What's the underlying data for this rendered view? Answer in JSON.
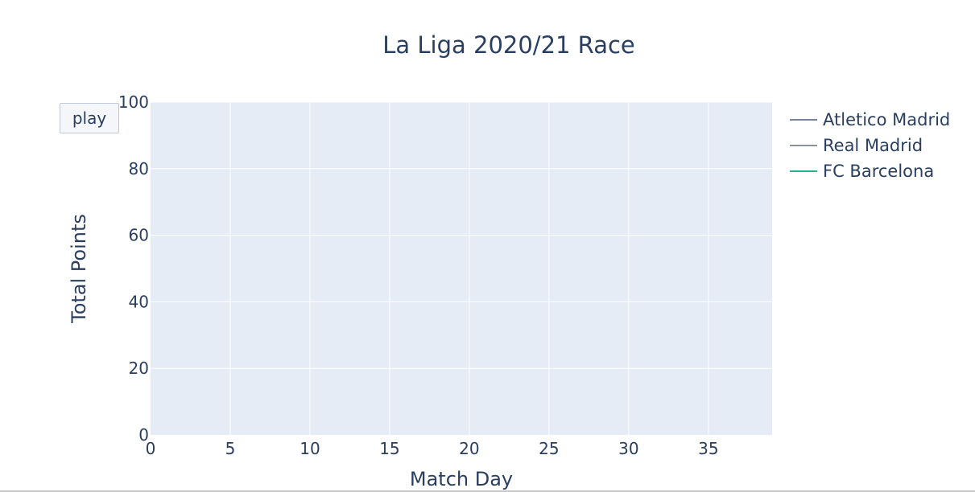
{
  "colors": {
    "plot_background": "#e5ecf6",
    "grid": "#ffffff",
    "text": "#2a3f5f",
    "atletico": "#76839a",
    "real": "#8a919c",
    "barcelona": "#1fb58f"
  },
  "controls": {
    "play_label": "play"
  },
  "chart_data": {
    "type": "line",
    "title": "La Liga 2020/21 Race",
    "xlabel": "Match Day",
    "ylabel": "Total Points",
    "xlim": [
      0,
      39
    ],
    "ylim": [
      0,
      100
    ],
    "x_ticks": [
      0,
      5,
      10,
      15,
      20,
      25,
      30,
      35
    ],
    "y_ticks": [
      0,
      20,
      40,
      60,
      80,
      100
    ],
    "grid": true,
    "legend_position": "top-right",
    "series": [
      {
        "name": "Atletico Madrid",
        "color_key": "atletico",
        "x": [],
        "y": []
      },
      {
        "name": "Real Madrid",
        "color_key": "real",
        "x": [],
        "y": []
      },
      {
        "name": "FC Barcelona",
        "color_key": "barcelona",
        "x": [],
        "y": []
      }
    ]
  }
}
